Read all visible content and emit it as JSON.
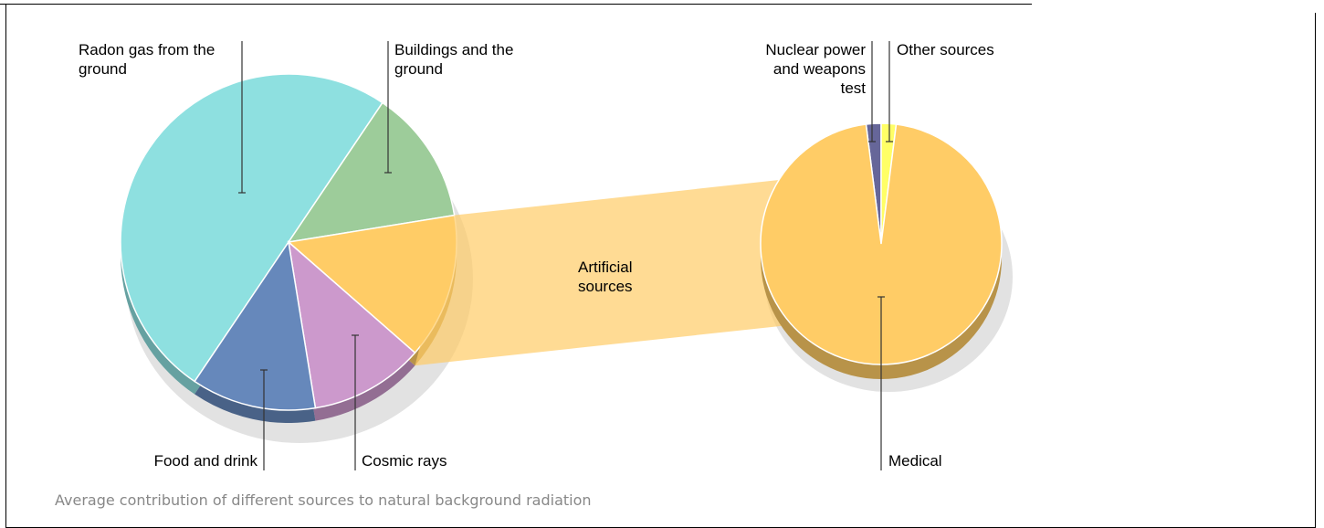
{
  "chart_data": {
    "type": "pie",
    "caption": "Average contribution of different sources to natural background radiation",
    "categories": [
      "Radon gas from the ground",
      "Buildings and the ground",
      "Artificial sources",
      "Cosmic rays",
      "Food and drink"
    ],
    "values": [
      50,
      13,
      14,
      11,
      12
    ],
    "colors": [
      "#8ee0e0",
      "#9dcc9a",
      "#ffcc66",
      "#cc99cc",
      "#6688bb"
    ],
    "breakdown": {
      "categories": [
        "Nuclear power and weapons test",
        "Other sources",
        "Medical"
      ],
      "values": [
        2,
        2,
        96
      ],
      "colors": [
        "#666699",
        "#ffff66",
        "#ffcc66"
      ]
    }
  }
}
